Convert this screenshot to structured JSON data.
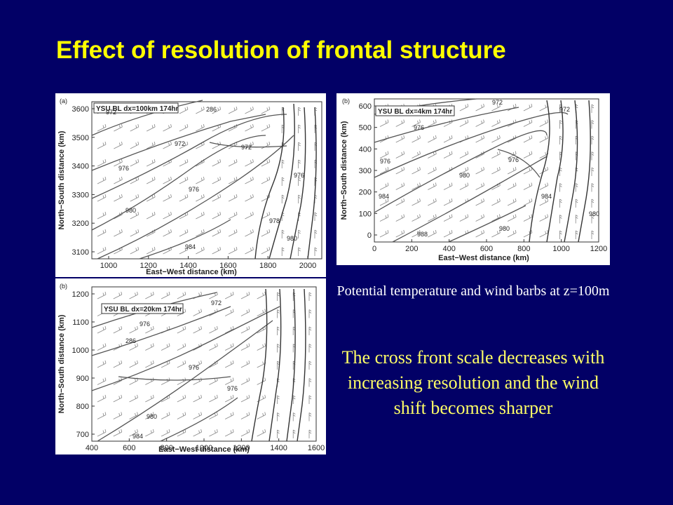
{
  "slide": {
    "title": "Effect of resolution of frontal structure",
    "caption": "Potential temperature and wind barbs at z=100m",
    "summary": "The cross front scale decreases with increasing resolution and the wind shift becomes sharper"
  },
  "panels": [
    {
      "id": "top-left",
      "panel_label": "(a)",
      "legend": "YSU BL dx=100km 174hr",
      "xlabel": "East−West distance (km)",
      "ylabel": "North−South distance (km)",
      "xticks": [
        "1000",
        "1200",
        "1400",
        "1600",
        "1800",
        "2000"
      ],
      "yticks": [
        "3600",
        "3500",
        "3400",
        "3300",
        "3200",
        "3100"
      ],
      "contour_labels": [
        "972",
        "286",
        "972",
        "976",
        "976",
        "980",
        "984",
        "978",
        "972",
        "976",
        "980"
      ]
    },
    {
      "id": "bottom-left",
      "panel_label": "(b)",
      "legend": "YSU BL dx=20km 174hr",
      "xlabel": "East−West distance (km)",
      "ylabel": "North−South distance (km)",
      "xticks": [
        "400",
        "600",
        "800",
        "1000",
        "1200",
        "1400",
        "1600"
      ],
      "yticks": [
        "1200",
        "1100",
        "1000",
        "900",
        "800",
        "700"
      ],
      "contour_labels": [
        "972",
        "976",
        "286",
        "976",
        "980",
        "984",
        "976"
      ]
    },
    {
      "id": "top-right",
      "panel_label": "(b)",
      "legend": "YSU BL dx=4km 174hr",
      "xlabel": "East−West distance (km)",
      "ylabel": "North−South distance (km)",
      "xticks": [
        "0",
        "200",
        "400",
        "600",
        "800",
        "1000",
        "1200"
      ],
      "yticks": [
        "600",
        "500",
        "400",
        "300",
        "200",
        "100",
        "0"
      ],
      "contour_labels": [
        "972",
        "976",
        "976",
        "980",
        "984",
        "988",
        "976",
        "980",
        "972",
        "984",
        "980"
      ]
    }
  ]
}
